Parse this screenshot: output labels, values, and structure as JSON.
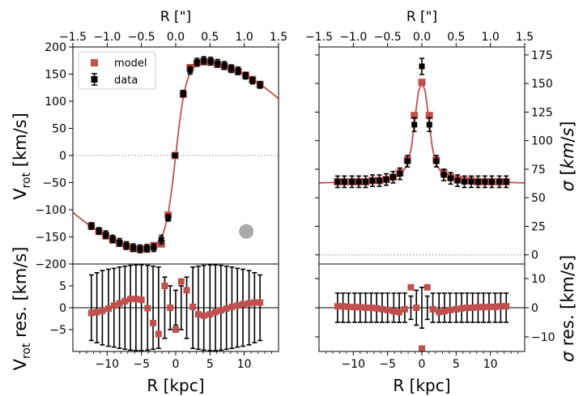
{
  "colors": {
    "model": "#c0504d",
    "data": "#000000",
    "zero_line": "#888888",
    "beam": "#aaaaaa"
  },
  "legend": {
    "model_label": "model",
    "data_label": "data"
  },
  "labels": {
    "top_xlabel": "R [\"]",
    "bottom_xlabel": "R [kpc]",
    "left_top_ylabel": "V_rot [km/s]",
    "left_bottom_ylabel": "V_rot res. [km/s]",
    "right_top_ylabel": "σ [km/s]",
    "right_bottom_ylabel": "σ res. [km/s]"
  },
  "chart_data": [
    {
      "type": "scatter",
      "panel": "rotation velocity",
      "xlabel": "R [kpc]",
      "top_xlabel": "R [\"]",
      "ylabel": "V_rot [km/s]",
      "xlim": [
        -15,
        15
      ],
      "top_xlim": [
        -1.5,
        1.5
      ],
      "ylim": [
        -200,
        200
      ],
      "x_ticks": [
        -10,
        -5,
        0,
        5,
        10
      ],
      "top_x_ticks": [
        -1.5,
        -1.0,
        -0.5,
        0.0,
        0.5,
        1.0,
        1.5
      ],
      "y_ticks": [
        -200,
        -150,
        -100,
        -50,
        0,
        50,
        100,
        150,
        200
      ],
      "legend_position": "top-left",
      "zero_line": 0,
      "beam_marker": {
        "x": 10.3,
        "y": -140
      },
      "x": [
        -12.3,
        -11.2,
        -10.2,
        -9.2,
        -8.2,
        -7.2,
        -6.2,
        -5.2,
        -4.2,
        -3.2,
        -2.1,
        -1.1,
        -0.1,
        1.1,
        2.1,
        3.1,
        4.1,
        5.1,
        6.1,
        7.1,
        8.1,
        9.1,
        10.2,
        11.2,
        12.3
      ],
      "series": [
        {
          "name": "model",
          "marker": "square",
          "values": [
            -130,
            -140,
            -148,
            -155,
            -162,
            -167,
            -171,
            -173,
            -172,
            -166,
            -163,
            -110,
            0,
            113,
            162,
            170,
            173,
            172,
            168,
            164,
            160,
            155,
            148,
            140,
            131
          ]
        },
        {
          "name": "data",
          "marker": "errorbar",
          "values": [
            -130,
            -139,
            -146,
            -154,
            -160,
            -166,
            -170,
            -172,
            -171,
            -170,
            -155,
            -115,
            0,
            114,
            157,
            172,
            175,
            174,
            170,
            166,
            160,
            156,
            147,
            138,
            130
          ],
          "errors": [
            6,
            6,
            7,
            7,
            7,
            7,
            7,
            7,
            7,
            7,
            8,
            6,
            4,
            6,
            7,
            7,
            7,
            7,
            7,
            7,
            7,
            7,
            6,
            6,
            6
          ]
        }
      ],
      "model_curve": {
        "x": [
          -15,
          -14,
          -13,
          -12,
          -11,
          -10,
          -9,
          -8,
          -7,
          -6,
          -5,
          -4,
          -3,
          -2,
          -1.5,
          -1,
          -0.5,
          0,
          0.5,
          1,
          1.5,
          2,
          3,
          4,
          5,
          6,
          7,
          8,
          9,
          10,
          11,
          12,
          13,
          14,
          15
        ],
        "y": [
          -105,
          -115,
          -125,
          -134,
          -143,
          -151,
          -158,
          -164,
          -168,
          -172,
          -173,
          -172,
          -167,
          -150,
          -130,
          -100,
          -55,
          0,
          55,
          100,
          130,
          150,
          167,
          172,
          173,
          172,
          168,
          163,
          157,
          150,
          142,
          134,
          125,
          115,
          105
        ]
      }
    },
    {
      "type": "scatter",
      "panel": "rotation velocity residuals",
      "xlabel": "R [kpc]",
      "ylabel": "V_rot res. [km/s]",
      "xlim": [
        -15,
        15
      ],
      "ylim": [
        -10,
        10
      ],
      "x_ticks": [
        -10,
        -5,
        0,
        5,
        10
      ],
      "y_ticks": [
        -5,
        0,
        5
      ],
      "zero_line": 0,
      "x": [
        -12.3,
        -11.5,
        -10.7,
        -9.8,
        -9.0,
        -8.2,
        -7.4,
        -6.6,
        -5.8,
        -5.0,
        -4.1,
        -3.3,
        -2.5,
        -1.6,
        -0.8,
        0,
        0.8,
        1.6,
        2.5,
        3.3,
        4.1,
        5.0,
        5.8,
        6.6,
        7.4,
        8.2,
        9.0,
        9.8,
        10.7,
        11.5,
        12.3
      ],
      "series": [
        {
          "name": "residual",
          "marker": "square",
          "values": [
            -1.2,
            -1.0,
            -0.7,
            -0.2,
            0.5,
            1.0,
            1.5,
            2.0,
            2.0,
            1.8,
            -0.1,
            -3.5,
            -6.0,
            5.0,
            0.0,
            -5.0,
            6.0,
            4.0,
            0.2,
            -1.5,
            -1.8,
            -1.5,
            -1.0,
            -0.6,
            -0.2,
            0.2,
            0.5,
            0.8,
            1.0,
            1.2,
            1.2
          ],
          "errors": [
            7.5,
            8.0,
            8.5,
            8.8,
            9.0,
            9.3,
            9.5,
            9.7,
            9.8,
            9.8,
            9.7,
            9.5,
            9.3,
            7.0,
            5.0,
            4.0,
            5.0,
            7.0,
            9.3,
            9.5,
            9.7,
            9.8,
            9.8,
            9.7,
            9.5,
            9.3,
            9.0,
            8.8,
            8.5,
            8.0,
            7.5
          ]
        }
      ]
    },
    {
      "type": "scatter",
      "panel": "velocity dispersion",
      "xlabel": "R [kpc]",
      "top_xlabel": "R [\"]",
      "ylabel": "σ [km/s]",
      "xlim": [
        -15,
        15
      ],
      "top_xlim": [
        -1.5,
        1.5
      ],
      "ylim": [
        -8,
        182
      ],
      "y_ticks": [
        0,
        25,
        50,
        75,
        100,
        125,
        150,
        175
      ],
      "top_x_ticks": [
        -1.5,
        -1.0,
        -0.5,
        0.0,
        0.5,
        1.0,
        1.5
      ],
      "zero_line": 0,
      "x": [
        -12.3,
        -11.3,
        -10.2,
        -9.2,
        -8.2,
        -7.2,
        -6.2,
        -5.2,
        -4.2,
        -3.2,
        -2.1,
        -1.1,
        0,
        1.1,
        2.1,
        3.2,
        4.2,
        5.2,
        6.2,
        7.2,
        8.2,
        9.2,
        10.2,
        11.3,
        12.3
      ],
      "series": [
        {
          "name": "model",
          "marker": "square",
          "values": [
            64,
            64,
            64,
            64,
            64,
            65,
            65,
            66,
            68,
            72,
            83,
            122,
            151,
            122,
            83,
            72,
            68,
            66,
            65,
            65,
            64,
            64,
            64,
            64,
            64
          ]
        },
        {
          "name": "data",
          "marker": "errorbar",
          "values": [
            64,
            64,
            64,
            64,
            64,
            65,
            65,
            66,
            68,
            71,
            82,
            114,
            165,
            114,
            82,
            70,
            67,
            65,
            64,
            64,
            64,
            64,
            64,
            64,
            64
          ],
          "errors": [
            5,
            5,
            5,
            5,
            5,
            5,
            5,
            5,
            5,
            5,
            5,
            6,
            7,
            6,
            5,
            5,
            5,
            5,
            5,
            5,
            5,
            5,
            5,
            5,
            5
          ]
        }
      ],
      "model_curve": {
        "x": [
          -15,
          -12,
          -9,
          -6,
          -4,
          -3,
          -2,
          -1.5,
          -1,
          -0.5,
          0,
          0.5,
          1,
          1.5,
          2,
          3,
          4,
          6,
          9,
          12,
          15
        ],
        "y": [
          63,
          63.5,
          64,
          65,
          67,
          71,
          80,
          95,
          120,
          143,
          151,
          143,
          120,
          95,
          80,
          71,
          67,
          65,
          64,
          63.5,
          63
        ]
      }
    },
    {
      "type": "scatter",
      "panel": "velocity dispersion residuals",
      "xlabel": "R [kpc]",
      "ylabel": "σ res. [km/s]",
      "xlim": [
        -15,
        15
      ],
      "ylim": [
        -15,
        15
      ],
      "x_ticks": [
        -10,
        -5,
        0,
        5,
        10
      ],
      "y_ticks": [
        -10,
        0,
        10
      ],
      "zero_line": 0,
      "x": [
        -12.3,
        -11.5,
        -10.7,
        -9.8,
        -9.0,
        -8.2,
        -7.4,
        -6.6,
        -5.8,
        -5.0,
        -4.1,
        -3.3,
        -2.5,
        -1.6,
        -0.8,
        0,
        0.8,
        1.6,
        2.5,
        3.3,
        4.1,
        5.0,
        5.8,
        6.6,
        7.4,
        8.2,
        9.0,
        9.8,
        10.7,
        11.5,
        12.3
      ],
      "series": [
        {
          "name": "residual",
          "marker": "square",
          "values": [
            0.5,
            0.5,
            0.3,
            0.2,
            0.2,
            0.0,
            0.0,
            -0.2,
            -0.5,
            -0.8,
            -1.2,
            -1.5,
            -0.5,
            7.0,
            0.0,
            -14.0,
            7.0,
            -0.5,
            -1.5,
            -1.2,
            -0.8,
            -0.5,
            -0.2,
            0.0,
            0.0,
            0.2,
            0.2,
            0.3,
            0.3,
            0.5,
            0.5
          ],
          "errors": [
            5,
            5,
            5,
            5,
            5,
            5,
            5,
            5,
            5,
            5,
            5,
            5,
            5,
            4,
            6,
            7,
            4,
            5,
            5,
            5,
            5,
            5,
            5,
            5,
            5,
            5,
            5,
            5,
            5,
            5,
            5
          ]
        }
      ]
    }
  ]
}
